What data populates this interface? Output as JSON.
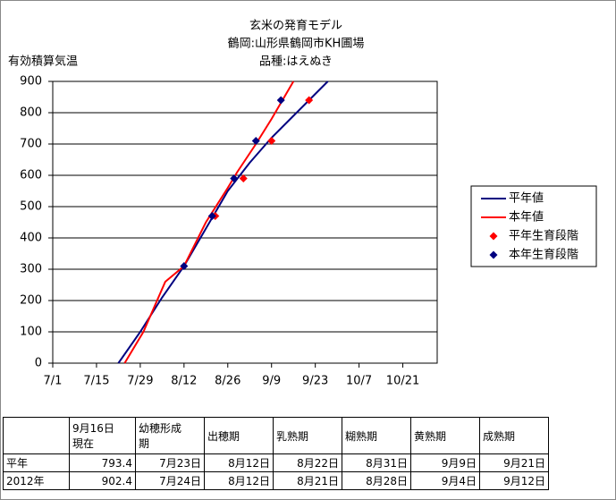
{
  "chart_data": {
    "type": "line",
    "title": "玄米の発育モデル",
    "subtitle": "鶴岡:山形県鶴岡市KH圃場",
    "variety": "品種:はえぬき",
    "y_label": "有効積算気温",
    "xlim": [
      0,
      123
    ],
    "ylim": [
      0,
      900
    ],
    "xticks": [
      {
        "value": 0,
        "label": "7/1"
      },
      {
        "value": 14,
        "label": "7/15"
      },
      {
        "value": 28,
        "label": "7/29"
      },
      {
        "value": 42,
        "label": "8/12"
      },
      {
        "value": 56,
        "label": "8/26"
      },
      {
        "value": 70,
        "label": "9/9"
      },
      {
        "value": 84,
        "label": "9/23"
      },
      {
        "value": 98,
        "label": "10/7"
      },
      {
        "value": 112,
        "label": "10/21"
      }
    ],
    "yticks": [
      0,
      100,
      200,
      300,
      400,
      500,
      600,
      700,
      800,
      900
    ],
    "grid": true,
    "series": [
      {
        "name": "平年値",
        "type": "line",
        "color": "#000080",
        "x": [
          21,
          28,
          35,
          42,
          49,
          56,
          63,
          70,
          77,
          84,
          88
        ],
        "values": [
          0,
          100,
          210,
          310,
          430,
          550,
          640,
          720,
          790,
          860,
          900
        ]
      },
      {
        "name": "本年値",
        "type": "line",
        "color": "#ff0000",
        "x": [
          23,
          29,
          36,
          42,
          49,
          56,
          59,
          65,
          70,
          77
        ],
        "values": [
          0,
          100,
          260,
          310,
          450,
          560,
          610,
          700,
          780,
          900
        ]
      },
      {
        "name": "平年生育段階",
        "type": "scatter",
        "color": "#ff0000",
        "x": [
          52,
          61,
          70,
          82
        ],
        "values": [
          470,
          590,
          710,
          840
        ]
      },
      {
        "name": "本年生育段階",
        "type": "scatter",
        "color": "#000080",
        "x": [
          42,
          51,
          58,
          65,
          73
        ],
        "values": [
          310,
          470,
          590,
          710,
          840
        ]
      }
    ]
  },
  "table": {
    "header": [
      "9月16日\n現在",
      "幼穂形成\n期",
      "出穂期",
      "乳熟期",
      "糊熟期",
      "黄熟期",
      "成熟期"
    ],
    "rows": [
      [
        "平年",
        "793.4",
        "7月23日",
        "8月12日",
        "8月22日",
        "8月31日",
        "9月9日",
        "9月21日"
      ],
      [
        "2012年",
        "902.4",
        "7月24日",
        "8月12日",
        "8月21日",
        "8月28日",
        "9月4日",
        "9月12日"
      ]
    ]
  }
}
